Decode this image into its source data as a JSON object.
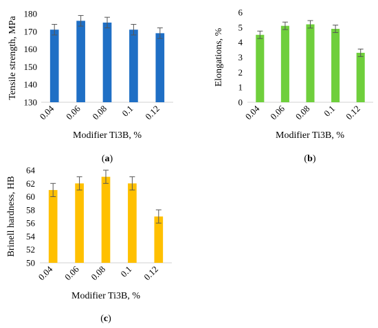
{
  "chart_data": [
    {
      "panel": "(a)",
      "type": "bar",
      "categories": [
        "0.04",
        "0.06",
        "0.08",
        "0.1",
        "0.12"
      ],
      "values": [
        171,
        176,
        175,
        171,
        169
      ],
      "errors": [
        3,
        3,
        3,
        3,
        3
      ],
      "color": "#1f6fc5",
      "xlabel": "Modifier Ti3B, %",
      "ylabel": "Tensile strength, MPa",
      "ylim": [
        130,
        180
      ],
      "yticks": [
        "130",
        "140",
        "150",
        "160",
        "170",
        "180"
      ],
      "grid": false
    },
    {
      "panel": "(b)",
      "type": "bar",
      "categories": [
        "0.04",
        "0.06",
        "0.08",
        "0.1",
        "0.12"
      ],
      "values": [
        4.5,
        5.1,
        5.2,
        4.9,
        3.3
      ],
      "errors": [
        0.25,
        0.25,
        0.25,
        0.25,
        0.25
      ],
      "color": "#6fcf3c",
      "xlabel": "Modifier Ti3B, %",
      "ylabel": "Elongations, %",
      "ylim": [
        0,
        6
      ],
      "yticks": [
        "0",
        "1",
        "2",
        "3",
        "4",
        "5",
        "6"
      ],
      "grid": false
    },
    {
      "panel": "(c)",
      "type": "bar",
      "categories": [
        "0.04",
        "0.06",
        "0.08",
        "0.1",
        "0.12"
      ],
      "values": [
        61,
        62,
        63,
        62,
        57
      ],
      "errors": [
        1,
        1,
        1,
        1,
        1
      ],
      "color": "#ffc000",
      "xlabel": "Modifier Ti3B, %",
      "ylabel": "Brinell hardness, HB",
      "ylim": [
        50,
        64
      ],
      "yticks": [
        "50",
        "52",
        "54",
        "56",
        "58",
        "60",
        "62",
        "64"
      ],
      "grid": false
    }
  ]
}
